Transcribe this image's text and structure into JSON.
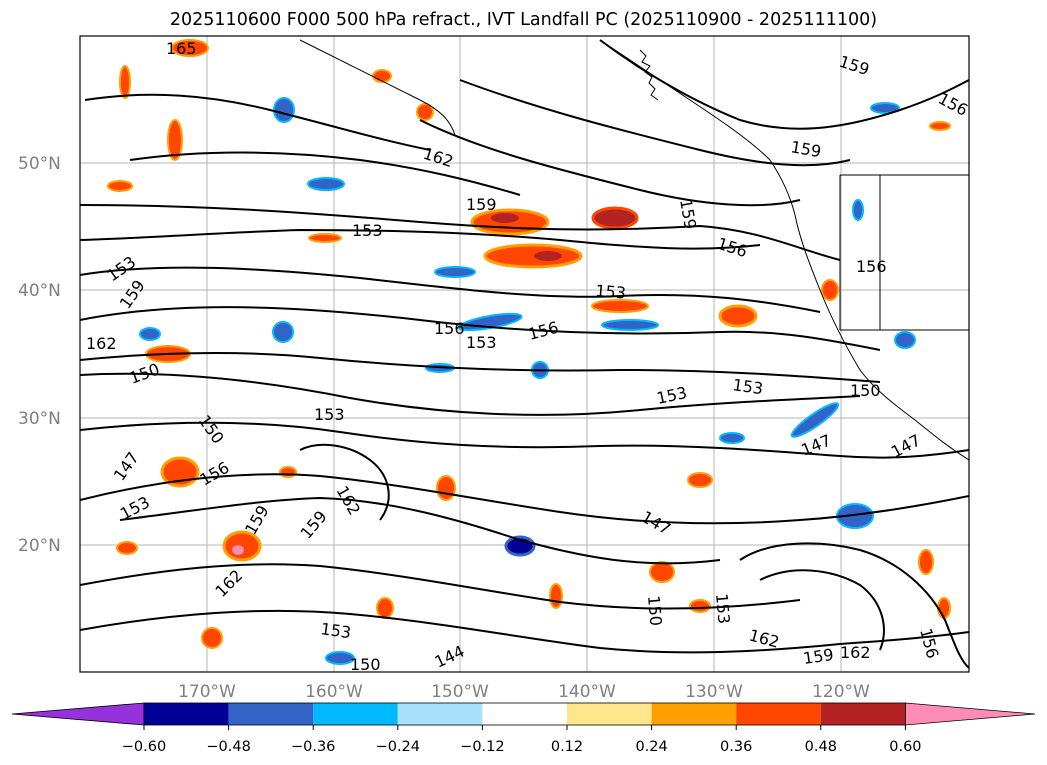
{
  "title": "2025110600 F000 500 hPa refract., IVT Landfall PC (2025110900 - 2025111100)",
  "map": {
    "lat_labels": [
      "50°N",
      "40°N",
      "30°N",
      "20°N"
    ],
    "lon_labels": [
      "170°W",
      "160°W",
      "150°W",
      "140°W",
      "130°W",
      "120°W"
    ],
    "contour_labels": [
      "165",
      "159",
      "156",
      "162",
      "159",
      "159",
      "153",
      "159",
      "156",
      "156",
      "153",
      "153",
      "159",
      "162",
      "153",
      "156",
      "156",
      "150",
      "153",
      "153",
      "150",
      "153",
      "147",
      "150",
      "156",
      "147",
      "147",
      "153",
      "162",
      "159",
      "147",
      "159",
      "162",
      "153",
      "150",
      "150",
      "153",
      "162",
      "159",
      "162",
      "156",
      "144"
    ],
    "shading_colors": {
      "neg_strong": "#000096",
      "neg_mid": "#3264c8",
      "neg_light": "#00b9ff",
      "neg_pale": "#aae1fa",
      "pos_pale": "#ffe68c",
      "pos_light": "#ffa000",
      "pos_mid": "#ff4600",
      "pos_strong": "#b42323",
      "pos_extreme": "#ff8cb4"
    }
  },
  "colorbar": {
    "ticks": [
      "−0.60",
      "−0.48",
      "−0.36",
      "−0.24",
      "−0.12",
      "0.12",
      "0.24",
      "0.36",
      "0.48",
      "0.60"
    ],
    "colors": [
      "#9632dc",
      "#000096",
      "#3264c8",
      "#00b9ff",
      "#aae1fa",
      "#ffffff",
      "#ffe68c",
      "#ffa000",
      "#ff4600",
      "#b42323",
      "#ff8cb4"
    ]
  }
}
